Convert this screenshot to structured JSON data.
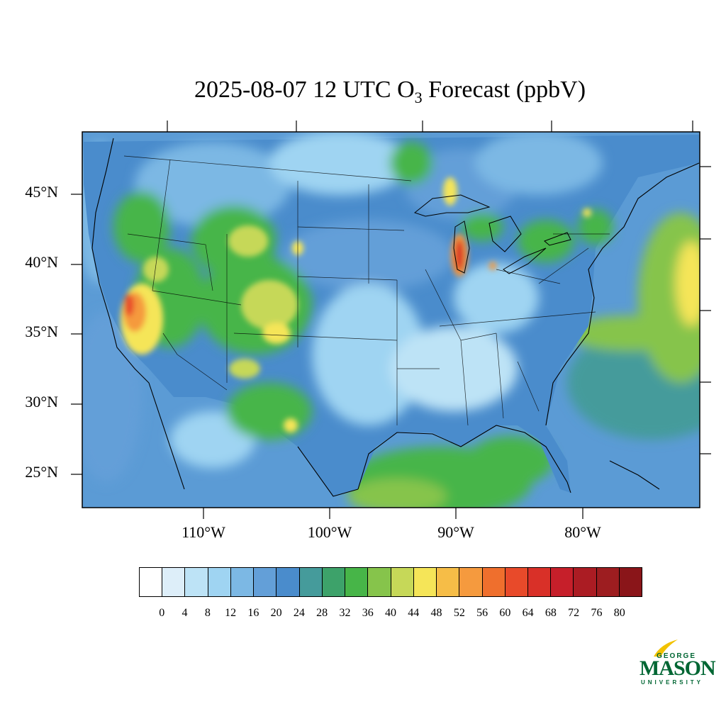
{
  "title": {
    "prefix": "2025-08-07 12 UTC O",
    "subscript": "3",
    "suffix": " Forecast (ppbV)"
  },
  "map": {
    "lat_labels": [
      "45°N",
      "40°N",
      "35°N",
      "30°N",
      "25°N"
    ],
    "lon_labels": [
      "110°W",
      "100°W",
      "90°W",
      "80°W"
    ],
    "land_color": "#4a8ccc",
    "ocean_color": "#5b9bd5"
  },
  "colorbar": {
    "labels": [
      "0",
      "4",
      "8",
      "12",
      "16",
      "20",
      "24",
      "28",
      "32",
      "36",
      "40",
      "44",
      "48",
      "52",
      "56",
      "60",
      "64",
      "68",
      "72",
      "76",
      "80"
    ],
    "colors": [
      "#ffffff",
      "#ddeef9",
      "#bde3f6",
      "#9fd4f2",
      "#7cb8e4",
      "#639fd8",
      "#4a8ccc",
      "#459b9b",
      "#3da26a",
      "#47b548",
      "#86c44b",
      "#c6d858",
      "#f5e558",
      "#f6bd47",
      "#f59a3e",
      "#ef6f2d",
      "#e84a2a",
      "#d93028",
      "#c61f2a",
      "#ab1c23",
      "#9d1d20",
      "#8a1519"
    ]
  },
  "logo": {
    "line1": "GEORGE",
    "line2": "MASON",
    "line3": "UNIVERSITY"
  }
}
